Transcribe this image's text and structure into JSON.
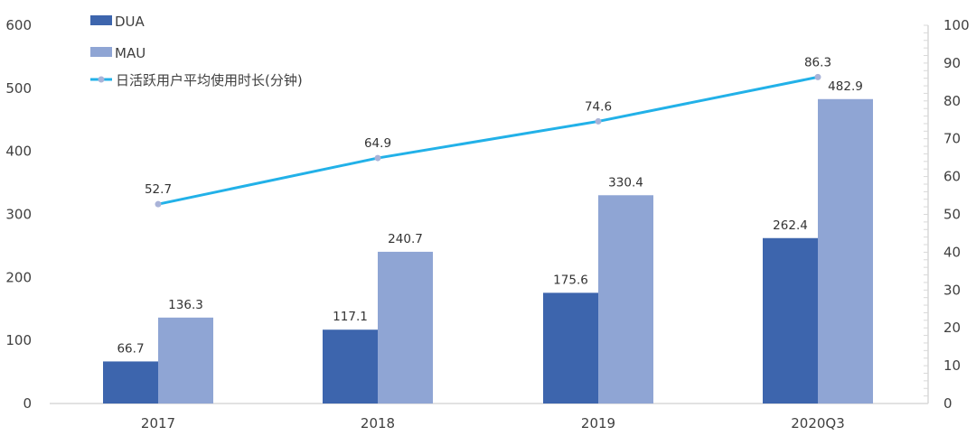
{
  "chart_data": {
    "type": "bar+line",
    "categories": [
      "2017",
      "2018",
      "2019",
      "2020Q3"
    ],
    "series": [
      {
        "name": "DUA",
        "type": "bar",
        "axis": "left",
        "color": "#3d65ad",
        "values": [
          66.7,
          117.1,
          175.6,
          262.4
        ],
        "labels": [
          "66.7",
          "117.1",
          "175.6",
          "262.4"
        ]
      },
      {
        "name": "MAU",
        "type": "bar",
        "axis": "left",
        "color": "#8fa5d4",
        "values": [
          136.3,
          240.7,
          330.4,
          482.9
        ],
        "labels": [
          "136.3",
          "240.7",
          "330.4",
          "482.9"
        ]
      },
      {
        "name": "日活跃用户平均使用时长(分钟)",
        "type": "line",
        "axis": "right",
        "color": "#22b1e8",
        "marker_color": "#a9b3d8",
        "values": [
          52.7,
          64.9,
          74.6,
          86.3
        ],
        "labels": [
          "52.7",
          "64.9",
          "74.6",
          "86.3"
        ]
      }
    ],
    "y_left": {
      "range": [
        0,
        600
      ],
      "ticks": [
        "0",
        "100",
        "200",
        "300",
        "400",
        "500",
        "600"
      ]
    },
    "y_right": {
      "range": [
        0,
        100
      ],
      "ticks": [
        "0",
        "10",
        "20",
        "30",
        "40",
        "50",
        "60",
        "70",
        "80",
        "90",
        "100"
      ]
    },
    "grid": false,
    "legend": "top-left"
  }
}
